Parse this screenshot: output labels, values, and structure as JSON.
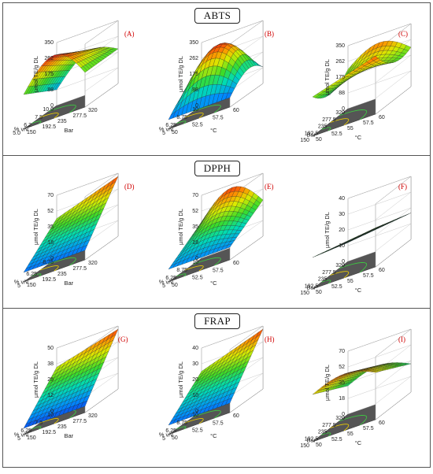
{
  "figure": {
    "sections": [
      {
        "title": "ABTS",
        "panels": [
          {
            "label": "(A)",
            "variant": 0,
            "z_label": "µmol TE/g DL",
            "z_ticks": [
              "350",
              "262",
              "175",
              "88",
              "0"
            ],
            "x_label": "% v/v",
            "x_ticks": [
              "10.0",
              "7.5",
              "6.2",
              "5.0"
            ],
            "y_label": "Bar",
            "y_ticks": [
              "320",
              "277.5",
              "235",
              "192.5",
              "150"
            ]
          },
          {
            "label": "(B)",
            "variant": 1,
            "z_label": "µmol TE/g DL",
            "z_ticks": [
              "350",
              "262",
              "175",
              "88",
              "0"
            ],
            "x_label": "% v/v",
            "x_ticks": [
              "10",
              "8.75",
              "6.25",
              "5"
            ],
            "y_label": "°C",
            "y_ticks": [
              "60",
              "57.5",
              "52.5",
              "50"
            ]
          },
          {
            "label": "(C)",
            "variant": 2,
            "z_label": "µmol TE/g DL",
            "z_ticks": [
              "350",
              "262",
              "175",
              "88",
              "0"
            ],
            "x_label": "Bar",
            "x_ticks": [
              "320",
              "277.5",
              "235",
              "192.5",
              "150"
            ],
            "y_label": "°C",
            "y_ticks": [
              "60",
              "57.5",
              "55",
              "52.5",
              "50"
            ]
          }
        ]
      },
      {
        "title": "DPPH",
        "panels": [
          {
            "label": "(D)",
            "variant": 0,
            "z_label": "µmol TE/g DL",
            "z_ticks": [
              "70",
              "52",
              "35",
              "18",
              "0"
            ],
            "x_label": "% v/v",
            "x_ticks": [
              "8.75",
              "6.25",
              "5"
            ],
            "y_label": "Bar",
            "y_ticks": [
              "320",
              "277.5",
              "235",
              "192.5",
              "150"
            ]
          },
          {
            "label": "(E)",
            "variant": 1,
            "z_label": "µmol TE/g DL",
            "z_ticks": [
              "70",
              "52",
              "35",
              "18",
              "0"
            ],
            "x_label": "% v/v",
            "x_ticks": [
              "10",
              "8.75",
              "6.25",
              "5"
            ],
            "y_label": "°C",
            "y_ticks": [
              "60",
              "57.5",
              "52.5",
              "50"
            ]
          },
          {
            "label": "(F)",
            "variant": 2,
            "z_label": "µmol TE/g DL",
            "z_ticks": [
              "40",
              "30",
              "20",
              "10",
              "0"
            ],
            "x_label": "Bar",
            "x_ticks": [
              "320",
              "277.5",
              "235",
              "192.5",
              "150"
            ],
            "y_label": "°C",
            "y_ticks": [
              "60",
              "57.5",
              "55",
              "52.5",
              "50"
            ]
          }
        ]
      },
      {
        "title": "FRAP",
        "panels": [
          {
            "label": "(G)",
            "variant": 0,
            "z_label": "µmol TE/g DL",
            "z_ticks": [
              "50",
              "38",
              "25",
              "12",
              "0"
            ],
            "x_label": "% v/v",
            "x_ticks": [
              "10",
              "7.5",
              "6.25",
              "5"
            ],
            "y_label": "Bar",
            "y_ticks": [
              "320",
              "277.5",
              "235",
              "192.5",
              "150"
            ]
          },
          {
            "label": "(H)",
            "variant": 1,
            "z_label": "µmol TE/g DL",
            "z_ticks": [
              "40",
              "30",
              "20",
              "10",
              "0"
            ],
            "x_label": "% v/v",
            "x_ticks": [
              "10",
              "8.75",
              "6.25",
              "5"
            ],
            "y_label": "°C",
            "y_ticks": [
              "60",
              "57.5",
              "52.5",
              "50"
            ]
          },
          {
            "label": "(I)",
            "variant": 2,
            "z_label": "µmol TE/g DL",
            "z_ticks": [
              "70",
              "52",
              "35",
              "18",
              "0"
            ],
            "x_label": "Bar",
            "x_ticks": [
              "320",
              "277.5",
              "235",
              "192.5",
              "150"
            ],
            "y_label": "°C",
            "y_ticks": [
              "60",
              "57.5",
              "55",
              "52.5",
              "50"
            ]
          }
        ]
      }
    ]
  }
}
